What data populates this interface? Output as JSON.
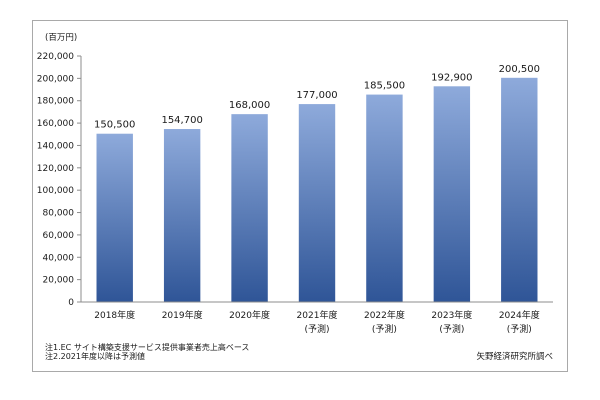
{
  "chart_data": {
    "type": "bar",
    "unit_label": "(百万円)",
    "categories": [
      {
        "line1": "2018年度",
        "line2": ""
      },
      {
        "line1": "2019年度",
        "line2": ""
      },
      {
        "line1": "2020年度",
        "line2": ""
      },
      {
        "line1": "2021年度",
        "line2": "(予測)"
      },
      {
        "line1": "2022年度",
        "line2": "(予測)"
      },
      {
        "line1": "2023年度",
        "line2": "(予測)"
      },
      {
        "line1": "2024年度",
        "line2": "(予測)"
      }
    ],
    "values": [
      150500,
      154700,
      168000,
      177000,
      185500,
      192900,
      200500
    ],
    "value_labels": [
      "150,500",
      "154,700",
      "168,000",
      "177,000",
      "185,500",
      "192,900",
      "200,500"
    ],
    "yticks": [
      "0",
      "20,000",
      "40,000",
      "60,000",
      "80,000",
      "100,000",
      "120,000",
      "140,000",
      "160,000",
      "180,000",
      "200,000",
      "220,000"
    ],
    "ylim": [
      0,
      220000
    ],
    "ystep": 20000,
    "bar_color_top": "#8eaadb",
    "bar_color_bottom": "#2f5597",
    "grid": false
  },
  "notes": {
    "note1": "注1.EC サイト構築支援サービス提供事業者売上高ベース",
    "note2": "注2.2021年度以降は予測値",
    "source": "矢野経済研究所調べ"
  }
}
